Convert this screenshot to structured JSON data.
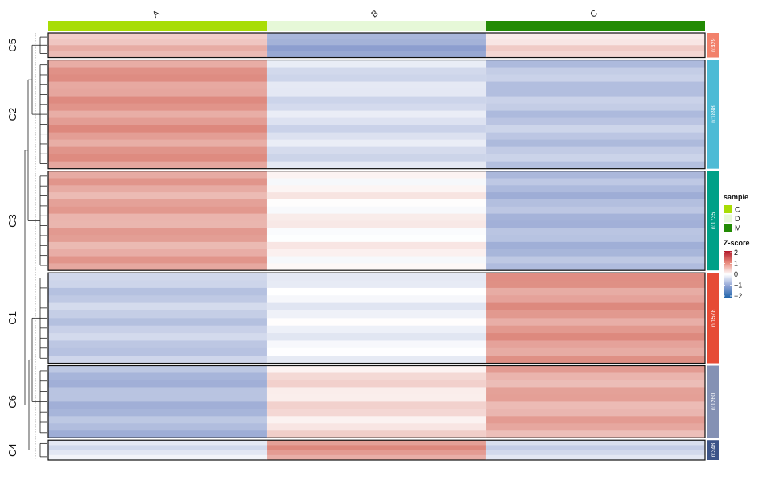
{
  "chart_data": {
    "type": "heatmap",
    "columns": [
      "A",
      "B",
      "C"
    ],
    "column_annotation": {
      "title": "sample",
      "categories": [
        "C",
        "D",
        "M"
      ],
      "colors": {
        "C": "#a8dd05",
        "D": "#e6f8d8",
        "M": "#228b04"
      },
      "column_to_sample": [
        "C",
        "D",
        "M"
      ]
    },
    "clusters": [
      {
        "name": "C5",
        "count_label": "n:429",
        "count": 429,
        "color": "#f2816b",
        "values": [
          0.75,
          -1.35,
          0.4
        ]
      },
      {
        "name": "C2",
        "count_label": "n:1898",
        "count": 1898,
        "color": "#4dbbd5",
        "values": [
          1.15,
          -0.5,
          -0.9
        ]
      },
      {
        "name": "C3",
        "count_label": "n:1735",
        "count": 1735,
        "color": "#00a087",
        "values": [
          1.0,
          0.1,
          -1.1
        ]
      },
      {
        "name": "C1",
        "count_label": "n:1578",
        "count": 1578,
        "color": "#e64b35",
        "values": [
          -0.8,
          -0.2,
          1.15
        ]
      },
      {
        "name": "C6",
        "count_label": "n:1260",
        "count": 1260,
        "color": "#8491b4",
        "values": [
          -1.1,
          0.35,
          0.95
        ]
      },
      {
        "name": "C4",
        "count_label": "n:348",
        "count": 348,
        "color": "#3c5488",
        "values": [
          -0.4,
          1.15,
          -0.6
        ]
      }
    ],
    "color_scale": {
      "title": "Z-score",
      "range": [
        -2,
        2
      ],
      "ticks": [
        "2",
        "1",
        "0",
        "−1",
        "−2"
      ],
      "low_color": "#2166ac",
      "mid_color": "#ffffff",
      "high_color": "#b2182b"
    },
    "row_dendrogram": true,
    "grid": false,
    "legend_position": "right"
  }
}
